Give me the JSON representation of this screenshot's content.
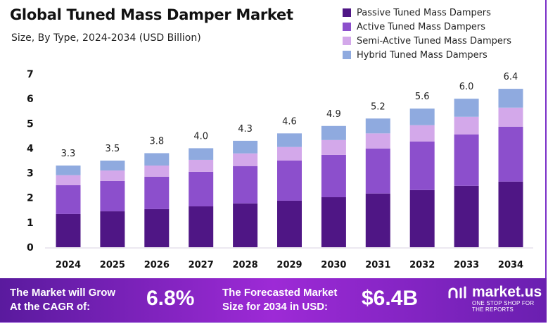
{
  "chart_data": {
    "type": "bar",
    "stacked": true,
    "title": "Global Tuned Mass Damper Market",
    "subtitle": "Size, By Type, 2024-2034 (USD Billion)",
    "categories": [
      "2024",
      "2025",
      "2026",
      "2027",
      "2028",
      "2029",
      "2030",
      "2031",
      "2032",
      "2033",
      "2034"
    ],
    "series": [
      {
        "name": "Passive Tuned Mass Dampers",
        "color": "#4f1685",
        "values": [
          1.34,
          1.45,
          1.54,
          1.65,
          1.77,
          1.88,
          2.02,
          2.17,
          2.31,
          2.48,
          2.65
        ]
      },
      {
        "name": "Active Tuned Mass Dampers",
        "color": "#8c4fcc",
        "values": [
          1.17,
          1.23,
          1.31,
          1.4,
          1.51,
          1.62,
          1.71,
          1.82,
          1.96,
          2.08,
          2.22
        ]
      },
      {
        "name": "Semi-Active Tuned Mass Dampers",
        "color": "#d3a8ea",
        "values": [
          0.4,
          0.42,
          0.45,
          0.48,
          0.51,
          0.55,
          0.6,
          0.61,
          0.66,
          0.71,
          0.77
        ]
      },
      {
        "name": "Hybrid Tuned Mass Dampers",
        "color": "#8faadf",
        "values": [
          0.39,
          0.4,
          0.5,
          0.47,
          0.51,
          0.55,
          0.57,
          0.6,
          0.67,
          0.73,
          0.76
        ]
      }
    ],
    "totals": [
      "3.3",
      "3.5",
      "3.8",
      "4.0",
      "4.3",
      "4.6",
      "4.9",
      "5.2",
      "5.6",
      "6.0",
      "6.4"
    ],
    "yticks": [
      "0",
      "1",
      "2",
      "3",
      "4",
      "5",
      "6",
      "7"
    ],
    "ylim": [
      0,
      7
    ],
    "grid": false,
    "legend_position": "top-right"
  },
  "banner": {
    "cagr_label": [
      "The Market will Grow",
      "At the CAGR of:"
    ],
    "cagr_value": "6.8%",
    "forecast_label": [
      "The Forecasted Market",
      "Size for 2034 in USD:"
    ],
    "forecast_value": "$6.4B",
    "logo_text": "market.us",
    "logo_tagline": "ONE STOP SHOP FOR THE REPORTS"
  }
}
